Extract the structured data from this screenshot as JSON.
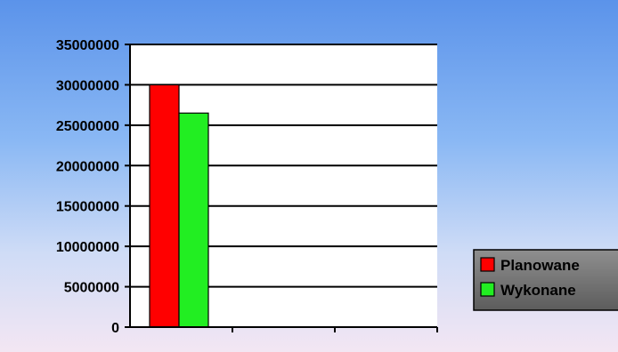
{
  "chart_data": {
    "type": "bar",
    "categories": [
      ""
    ],
    "series": [
      {
        "name": "Planowane",
        "values": [
          30000000
        ],
        "color": "#ff0000"
      },
      {
        "name": "Wykonane",
        "values": [
          26500000
        ],
        "color": "#22ee22"
      }
    ],
    "yticks": [
      0,
      5000000,
      10000000,
      15000000,
      20000000,
      25000000,
      30000000,
      35000000
    ],
    "yticks_text": [
      "0",
      "5000000",
      "10000000",
      "15000000",
      "20000000",
      "25000000",
      "30000000",
      "35000000"
    ],
    "ylim": [
      0,
      35000000
    ],
    "grid": true,
    "legend": "right",
    "plot_background": "#ffffff",
    "title": "",
    "xlabel": "",
    "ylabel": ""
  }
}
